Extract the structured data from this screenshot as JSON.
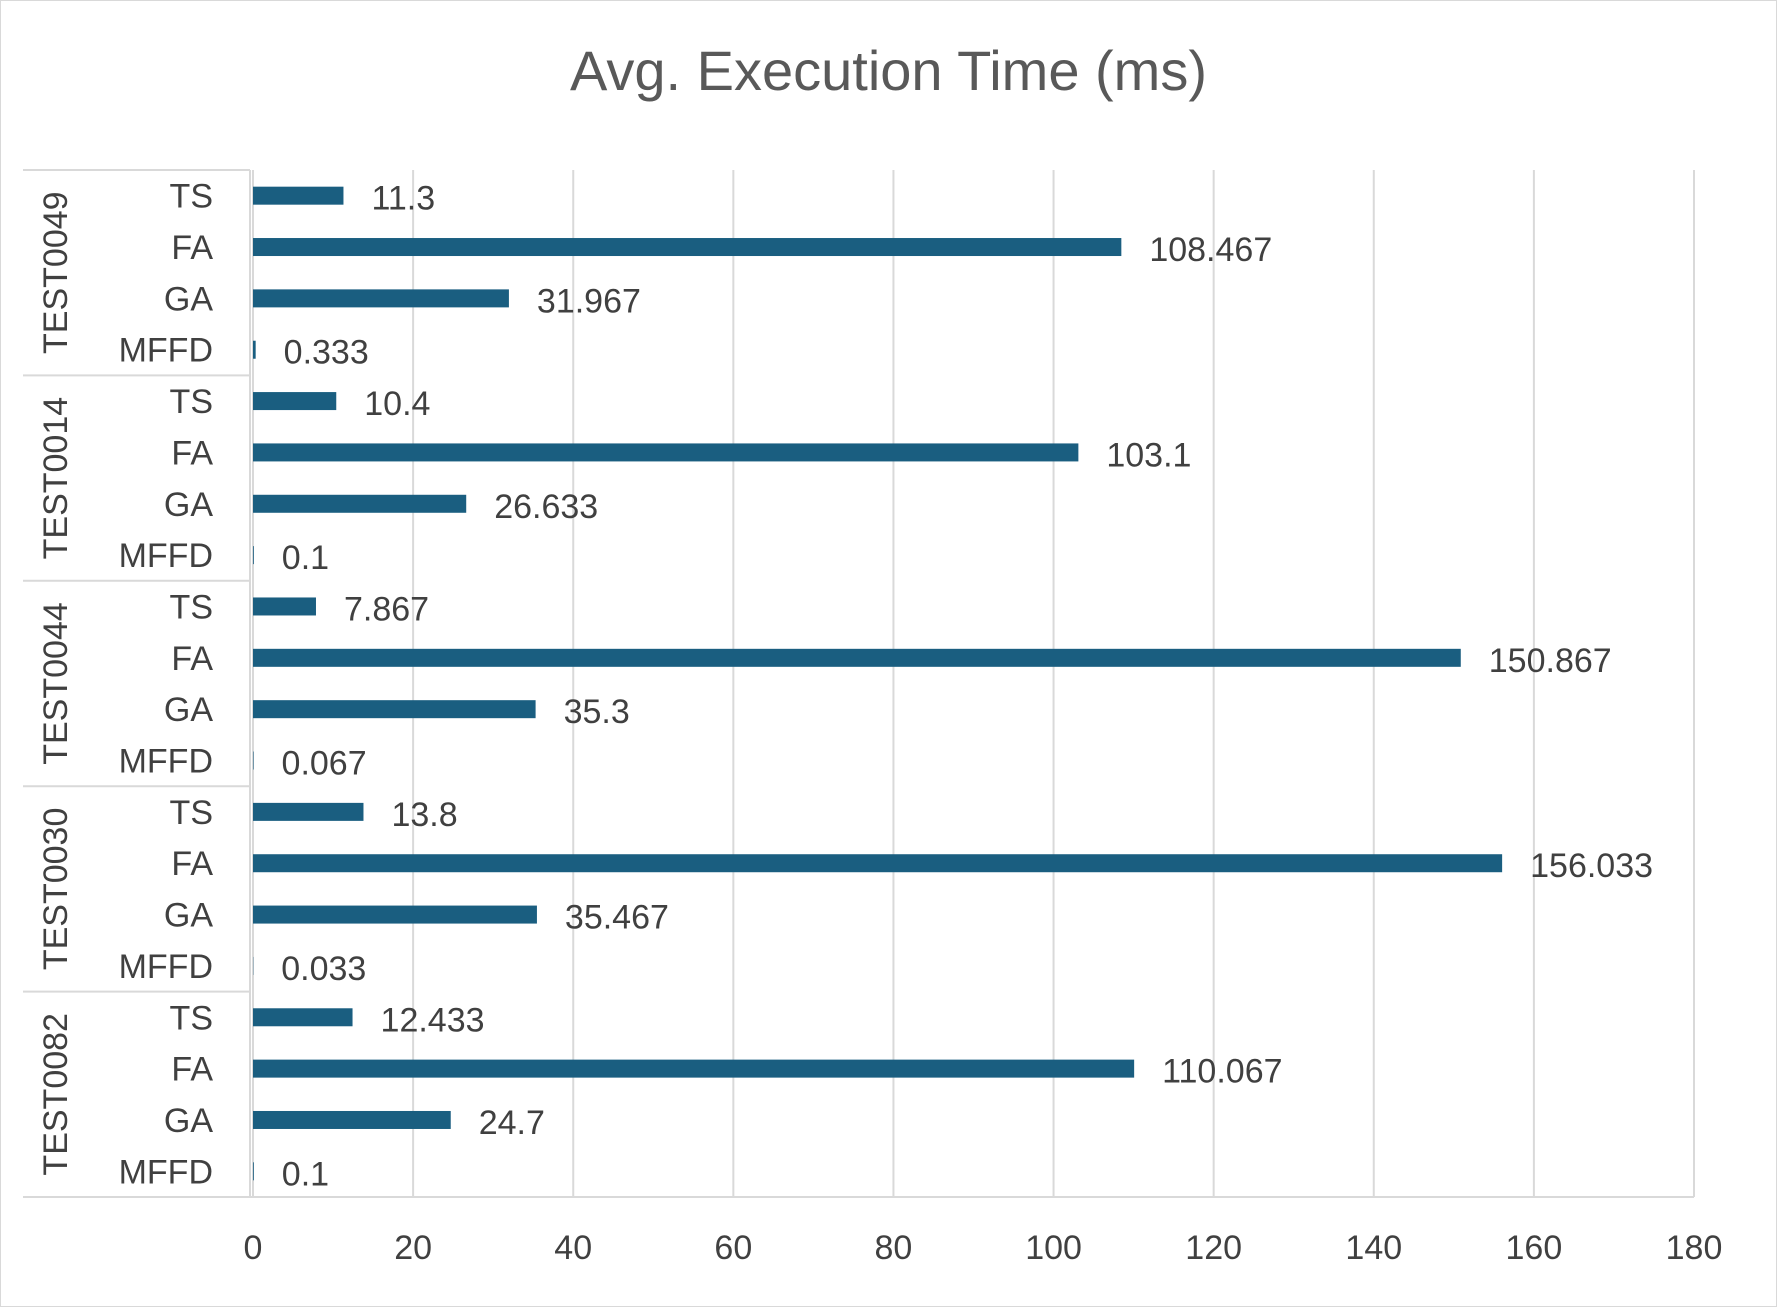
{
  "chart_data": {
    "type": "bar",
    "orientation": "horizontal",
    "title": "Avg. Execution Time (ms)",
    "xlabel": "",
    "ylabel": "",
    "xlim": [
      0,
      180
    ],
    "x_ticks": [
      0,
      20,
      40,
      60,
      80,
      100,
      120,
      140,
      160,
      180
    ],
    "grid": "vertical",
    "legend": "none",
    "bar_color": "#1a5e80",
    "groups": [
      {
        "name": "TEST0049",
        "categories": [
          "TS",
          "FA",
          "GA",
          "MFFD"
        ],
        "values": [
          11.3,
          108.467,
          31.967,
          0.333
        ]
      },
      {
        "name": "TEST0014",
        "categories": [
          "TS",
          "FA",
          "GA",
          "MFFD"
        ],
        "values": [
          10.4,
          103.1,
          26.633,
          0.1
        ]
      },
      {
        "name": "TEST0044",
        "categories": [
          "TS",
          "FA",
          "GA",
          "MFFD"
        ],
        "values": [
          7.867,
          150.867,
          35.3,
          0.067
        ]
      },
      {
        "name": "TEST0030",
        "categories": [
          "TS",
          "FA",
          "GA",
          "MFFD"
        ],
        "values": [
          13.8,
          156.033,
          35.467,
          0.033
        ]
      },
      {
        "name": "TEST0082",
        "categories": [
          "TS",
          "FA",
          "GA",
          "MFFD"
        ],
        "values": [
          12.433,
          110.067,
          24.7,
          0.1
        ]
      }
    ]
  }
}
